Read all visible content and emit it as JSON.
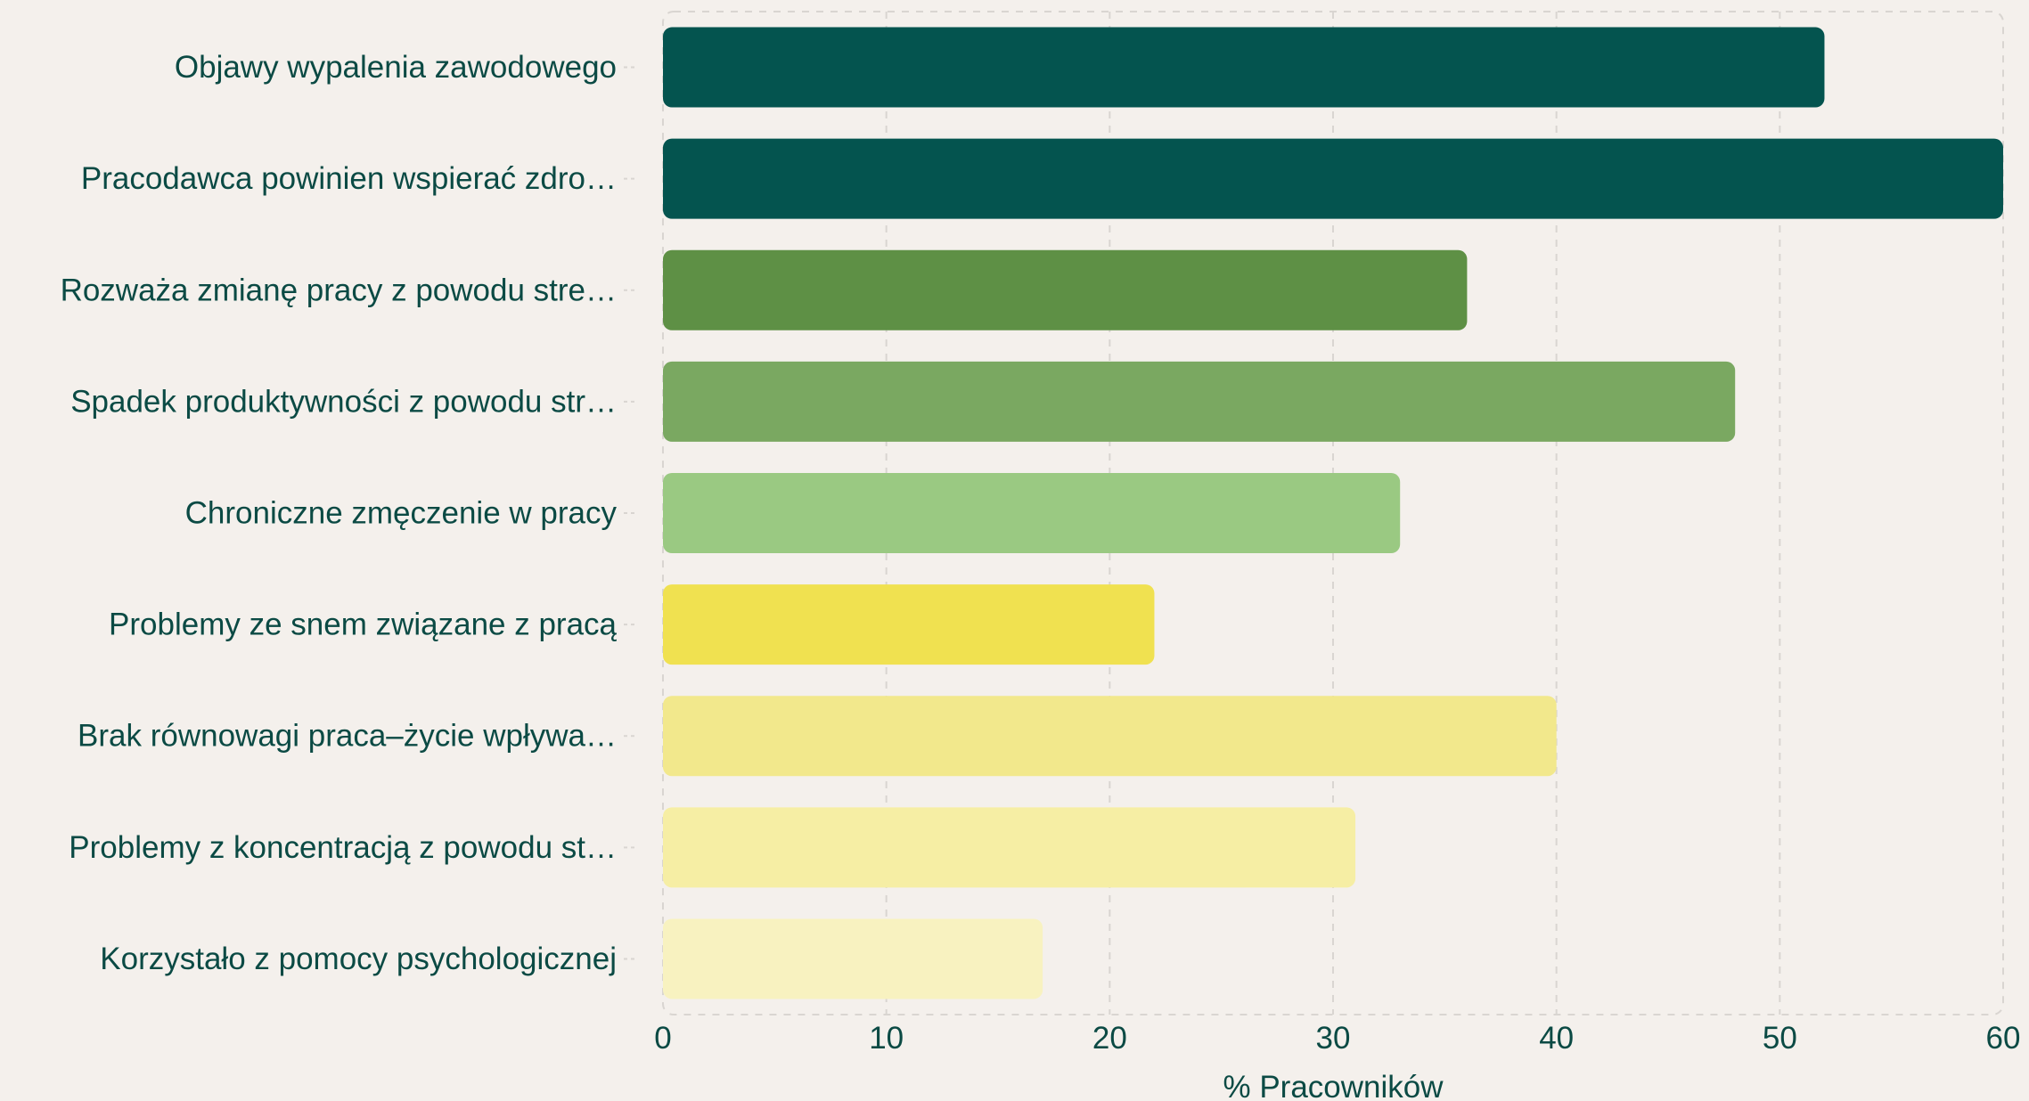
{
  "chart_data": {
    "type": "bar",
    "orientation": "horizontal",
    "categories": [
      "Objawy wypalenia zawodowego",
      "Pracodawca powinien wspierać zdro…",
      "Rozważa zmianę pracy z powodu stre…",
      "Spadek produktywności z powodu str…",
      "Chroniczne zmęczenie w pracy",
      "Problemy ze snem związane z pracą",
      "Brak równowagi praca–życie wpływa…",
      "Problemy z koncentracją z powodu st…",
      "Korzystało z pomocy psychologicznej"
    ],
    "values": [
      52,
      60,
      36,
      48,
      33,
      22,
      40,
      31,
      17
    ],
    "colors": [
      "#04544f",
      "#04544f",
      "#5e9045",
      "#7aa861",
      "#9ac982",
      "#f0e150",
      "#f2e88c",
      "#f6eea4",
      "#f8f2c0"
    ],
    "xlabel": "% Pracowników",
    "ylabel": "",
    "xlim": [
      0,
      60
    ],
    "xticks": [
      "0",
      "10",
      "20",
      "30",
      "40",
      "50",
      "60"
    ],
    "grid": true,
    "grid_style": "dashed-vertical",
    "legend": "none"
  },
  "colors": {
    "background": "#f4f0ec",
    "text": "#0b4a44",
    "grid": "#d9d5d1"
  }
}
